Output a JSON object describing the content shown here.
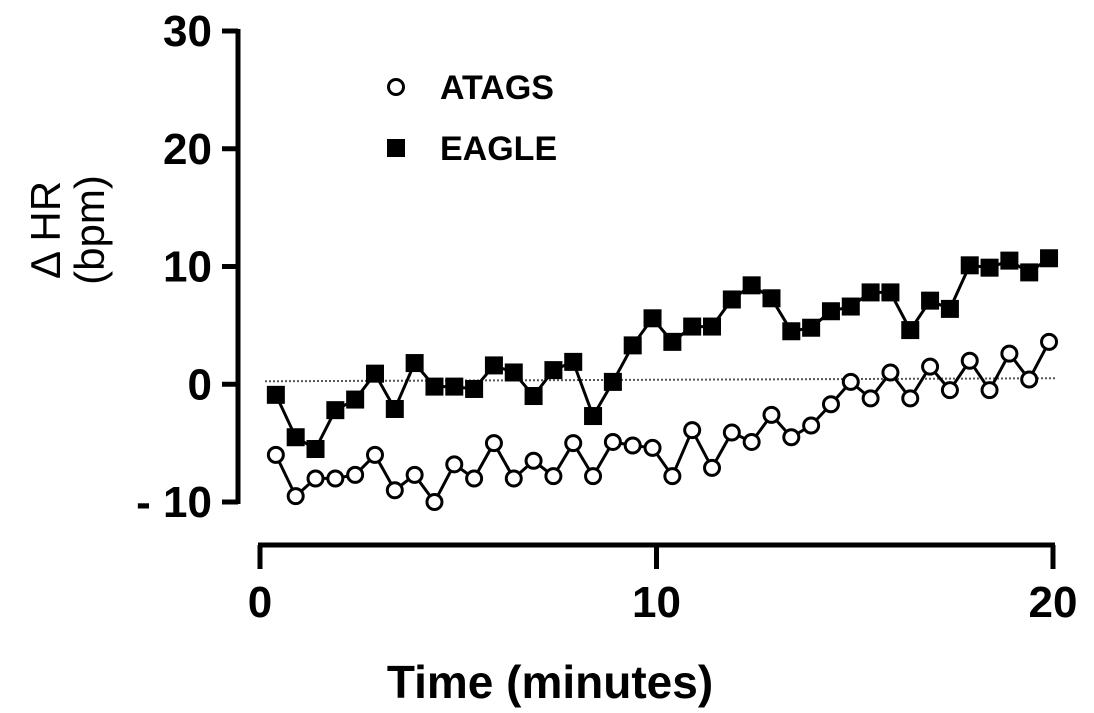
{
  "chart_data": {
    "type": "line",
    "title": "",
    "xlabel": "Time (minutes)",
    "ylabel": "Δ HR\n(bpm)",
    "ylabel_line1": "Δ HR",
    "ylabel_line2": "(bpm)",
    "xlim": [
      0,
      20
    ],
    "ylim": [
      -10,
      30
    ],
    "xticks": [
      0,
      10,
      20
    ],
    "xtick_labels": [
      "0",
      "10",
      "20"
    ],
    "yticks": [
      -10,
      0,
      10,
      20,
      30
    ],
    "ytick_labels": [
      "- 10",
      "0",
      "10",
      "20",
      "30"
    ],
    "grid": false,
    "legend_position": "top-left",
    "reference_line_y": 0,
    "series": [
      {
        "name": "ATAGS",
        "marker": "open-circle",
        "color": "#000000",
        "x": [
          0.4,
          0.9,
          1.4,
          1.9,
          2.4,
          2.9,
          3.4,
          3.9,
          4.4,
          4.9,
          5.4,
          5.9,
          6.4,
          6.9,
          7.4,
          7.9,
          8.4,
          8.9,
          9.4,
          9.9,
          10.4,
          10.9,
          11.4,
          11.9,
          12.4,
          12.9,
          13.4,
          13.9,
          14.4,
          14.9,
          15.4,
          15.9,
          16.4,
          16.9,
          17.4,
          17.9,
          18.4,
          18.9,
          19.4,
          19.9
        ],
        "y": [
          -6.0,
          -9.5,
          -8.0,
          -8.0,
          -7.7,
          -6.0,
          -9.0,
          -7.7,
          -10.0,
          -6.8,
          -8.0,
          -5.0,
          -8.0,
          -6.5,
          -7.8,
          -5.0,
          -7.8,
          -4.9,
          -5.2,
          -5.4,
          -7.8,
          -3.9,
          -7.1,
          -4.1,
          -4.9,
          -2.6,
          -4.5,
          -3.5,
          -1.7,
          0.2,
          -1.2,
          1.0,
          -1.2,
          1.5,
          -0.5,
          2.0,
          -0.5,
          2.6,
          0.4,
          3.6
        ]
      },
      {
        "name": "EAGLE",
        "marker": "filled-square",
        "color": "#000000",
        "x": [
          0.4,
          0.9,
          1.4,
          1.9,
          2.4,
          2.9,
          3.4,
          3.9,
          4.4,
          4.9,
          5.4,
          5.9,
          6.4,
          6.9,
          7.4,
          7.9,
          8.4,
          8.9,
          9.4,
          9.9,
          10.4,
          10.9,
          11.4,
          11.9,
          12.4,
          12.9,
          13.4,
          13.9,
          14.4,
          14.9,
          15.4,
          15.9,
          16.4,
          16.9,
          17.4,
          17.9,
          18.4,
          18.9,
          19.4,
          19.9
        ],
        "y": [
          -0.9,
          -4.5,
          -5.5,
          -2.2,
          -1.3,
          0.9,
          -2.1,
          1.8,
          -0.2,
          -0.2,
          -0.4,
          1.6,
          1.0,
          -1.0,
          1.2,
          1.9,
          -2.7,
          0.2,
          3.3,
          5.6,
          3.6,
          4.9,
          4.9,
          7.2,
          8.4,
          7.3,
          4.5,
          4.8,
          6.2,
          6.6,
          7.8,
          7.8,
          4.6,
          7.1,
          6.4,
          10.1,
          9.9,
          10.5,
          9.5,
          10.7
        ]
      }
    ]
  },
  "colors": {
    "ink": "#000000",
    "reference_line": "#555555",
    "background": "#ffffff"
  }
}
